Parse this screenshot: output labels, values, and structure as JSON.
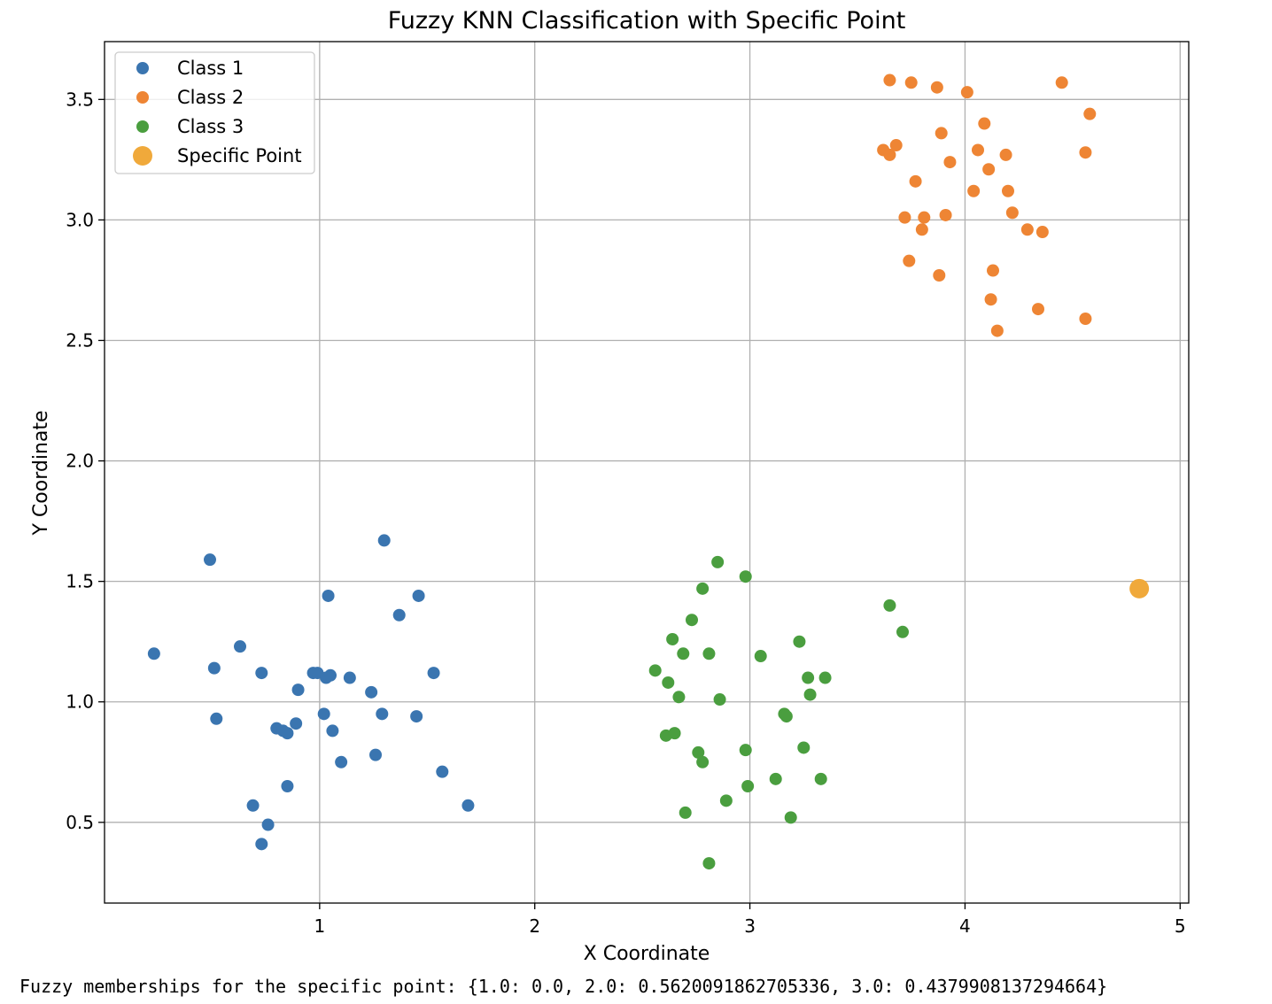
{
  "chart_data": {
    "type": "scatter",
    "title": "Fuzzy KNN Classification with Specific Point",
    "xlabel": "X Coordinate",
    "ylabel": "Y Coordinate",
    "xlim": [
      0.0,
      5.04
    ],
    "ylim": [
      0.165,
      3.74
    ],
    "xticks": [
      1,
      2,
      3,
      4,
      5
    ],
    "yticks": [
      0.5,
      1.0,
      1.5,
      2.0,
      2.5,
      3.0,
      3.5
    ],
    "grid": true,
    "legend_position": "top-left",
    "series": [
      {
        "name": "Class 1",
        "color": "#3a75b0",
        "points": [
          [
            0.23,
            1.2
          ],
          [
            0.49,
            1.59
          ],
          [
            0.51,
            1.14
          ],
          [
            0.52,
            0.93
          ],
          [
            0.63,
            1.23
          ],
          [
            0.69,
            0.57
          ],
          [
            0.73,
            1.12
          ],
          [
            0.73,
            0.41
          ],
          [
            0.76,
            0.49
          ],
          [
            0.8,
            0.89
          ],
          [
            0.83,
            0.88
          ],
          [
            0.85,
            0.87
          ],
          [
            0.85,
            0.65
          ],
          [
            0.89,
            0.91
          ],
          [
            0.9,
            1.05
          ],
          [
            0.97,
            1.12
          ],
          [
            0.99,
            1.12
          ],
          [
            1.02,
            0.95
          ],
          [
            1.03,
            1.1
          ],
          [
            1.04,
            1.44
          ],
          [
            1.05,
            1.11
          ],
          [
            1.06,
            0.88
          ],
          [
            1.1,
            0.75
          ],
          [
            1.14,
            1.1
          ],
          [
            1.24,
            1.04
          ],
          [
            1.26,
            0.78
          ],
          [
            1.29,
            0.95
          ],
          [
            1.3,
            1.67
          ],
          [
            1.37,
            1.36
          ],
          [
            1.45,
            0.94
          ],
          [
            1.46,
            1.44
          ],
          [
            1.53,
            1.12
          ],
          [
            1.57,
            0.71
          ],
          [
            1.69,
            0.57
          ]
        ]
      },
      {
        "name": "Class 2",
        "color": "#ee8534",
        "points": [
          [
            3.62,
            3.29
          ],
          [
            3.65,
            3.27
          ],
          [
            3.65,
            3.58
          ],
          [
            3.68,
            3.31
          ],
          [
            3.72,
            3.01
          ],
          [
            3.74,
            2.83
          ],
          [
            3.75,
            3.57
          ],
          [
            3.77,
            3.16
          ],
          [
            3.8,
            2.96
          ],
          [
            3.81,
            3.01
          ],
          [
            3.87,
            3.55
          ],
          [
            3.88,
            2.77
          ],
          [
            3.89,
            3.36
          ],
          [
            3.91,
            3.02
          ],
          [
            3.93,
            3.24
          ],
          [
            4.01,
            3.53
          ],
          [
            4.04,
            3.12
          ],
          [
            4.06,
            3.29
          ],
          [
            4.09,
            3.4
          ],
          [
            4.11,
            3.21
          ],
          [
            4.12,
            2.67
          ],
          [
            4.13,
            2.79
          ],
          [
            4.15,
            2.54
          ],
          [
            4.19,
            3.27
          ],
          [
            4.2,
            3.12
          ],
          [
            4.22,
            3.03
          ],
          [
            4.29,
            2.96
          ],
          [
            4.34,
            2.63
          ],
          [
            4.36,
            2.95
          ],
          [
            4.45,
            3.57
          ],
          [
            4.56,
            3.28
          ],
          [
            4.56,
            2.59
          ],
          [
            4.58,
            3.44
          ]
        ]
      },
      {
        "name": "Class 3",
        "color": "#4a9e3f",
        "points": [
          [
            2.56,
            1.13
          ],
          [
            2.61,
            0.86
          ],
          [
            2.62,
            1.08
          ],
          [
            2.64,
            1.26
          ],
          [
            2.65,
            0.87
          ],
          [
            2.67,
            1.02
          ],
          [
            2.69,
            1.2
          ],
          [
            2.7,
            0.54
          ],
          [
            2.73,
            1.34
          ],
          [
            2.76,
            0.79
          ],
          [
            2.78,
            1.47
          ],
          [
            2.78,
            0.75
          ],
          [
            2.81,
            1.2
          ],
          [
            2.81,
            0.33
          ],
          [
            2.85,
            1.58
          ],
          [
            2.86,
            1.01
          ],
          [
            2.89,
            0.59
          ],
          [
            2.98,
            0.8
          ],
          [
            2.98,
            1.52
          ],
          [
            2.99,
            0.65
          ],
          [
            3.05,
            1.19
          ],
          [
            3.12,
            0.68
          ],
          [
            3.16,
            0.95
          ],
          [
            3.17,
            0.94
          ],
          [
            3.19,
            0.52
          ],
          [
            3.23,
            1.25
          ],
          [
            3.25,
            0.81
          ],
          [
            3.27,
            1.1
          ],
          [
            3.28,
            1.03
          ],
          [
            3.33,
            0.68
          ],
          [
            3.35,
            1.1
          ],
          [
            3.65,
            1.4
          ],
          [
            3.71,
            1.29
          ]
        ]
      },
      {
        "name": "Specific Point",
        "color": "#f0a93b",
        "points": [
          [
            4.81,
            1.47
          ]
        ]
      }
    ]
  },
  "output": {
    "text": "Fuzzy memberships for the specific point: {1.0: 0.0, 2.0: 0.5620091862705336, 3.0: 0.4379908137294664}"
  }
}
